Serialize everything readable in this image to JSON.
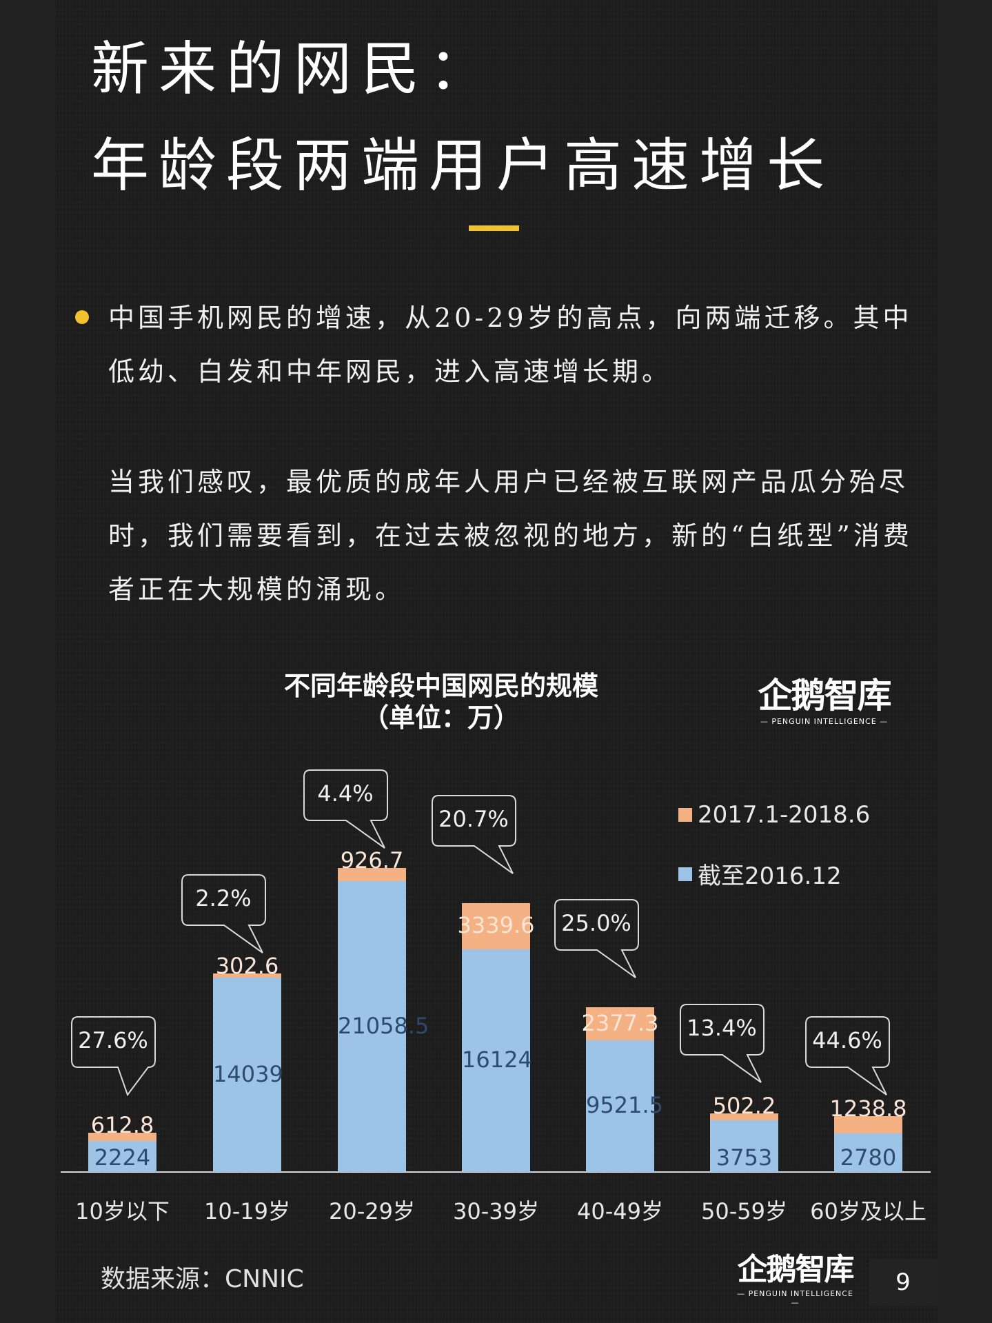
{
  "header": {
    "title_line1": "新来的网民：",
    "title_line2": "年龄段两端用户高速增长",
    "accent_color": "#F2C12E"
  },
  "body": {
    "paragraph1": "中国手机网民的增速，从20-29岁的高点，向两端迁移。其中低幼、白发和中年网民，进入高速增长期。",
    "paragraph2": "当我们感叹，最优质的成年人用户已经被互联网产品瓜分殆尽时，我们需要看到，在过去被忽视的地方，新的“白纸型”消费者正在大规模的涌现。"
  },
  "logo": {
    "zh": "企鹅智库",
    "en": "— PENGUIN INTELLIGENCE —"
  },
  "footer": {
    "source": "数据来源：CNNIC",
    "page_number": "9"
  },
  "chart_data": {
    "type": "bar",
    "stacked": true,
    "title": "不同年龄段中国网民的规模",
    "subtitle": "（单位：万）",
    "xlabel": "",
    "ylabel": "",
    "categories": [
      "10岁以下",
      "10-19岁",
      "20-29岁",
      "30-39岁",
      "40-49岁",
      "50-59岁",
      "60岁及以上"
    ],
    "series": [
      {
        "name": "截至2016.12",
        "color": "#9DC3E6",
        "values": [
          2224,
          14039,
          21058.5,
          16124,
          9521.5,
          3753,
          2780
        ],
        "labels": [
          "2224",
          "14039",
          "21058.5",
          "16124",
          "9521.5",
          "3753",
          "2780"
        ]
      },
      {
        "name": "2017.1-2018.6",
        "color": "#F4B183",
        "values": [
          612.8,
          302.6,
          926.7,
          3339.6,
          2377.3,
          502.2,
          1238.8
        ],
        "labels": [
          "612.8",
          "302.6",
          "926.7",
          "3339.6",
          "2377.3",
          "502.2",
          "1238.8"
        ]
      }
    ],
    "growth_rates": [
      "27.6%",
      "2.2%",
      "4.4%",
      "20.7%",
      "25.0%",
      "13.4%",
      "44.6%"
    ],
    "legend": [
      "2017.1-2018.6",
      "截至2016.12"
    ],
    "legend_position": "top-right",
    "grid": false,
    "ylim": [
      0,
      22000
    ]
  }
}
